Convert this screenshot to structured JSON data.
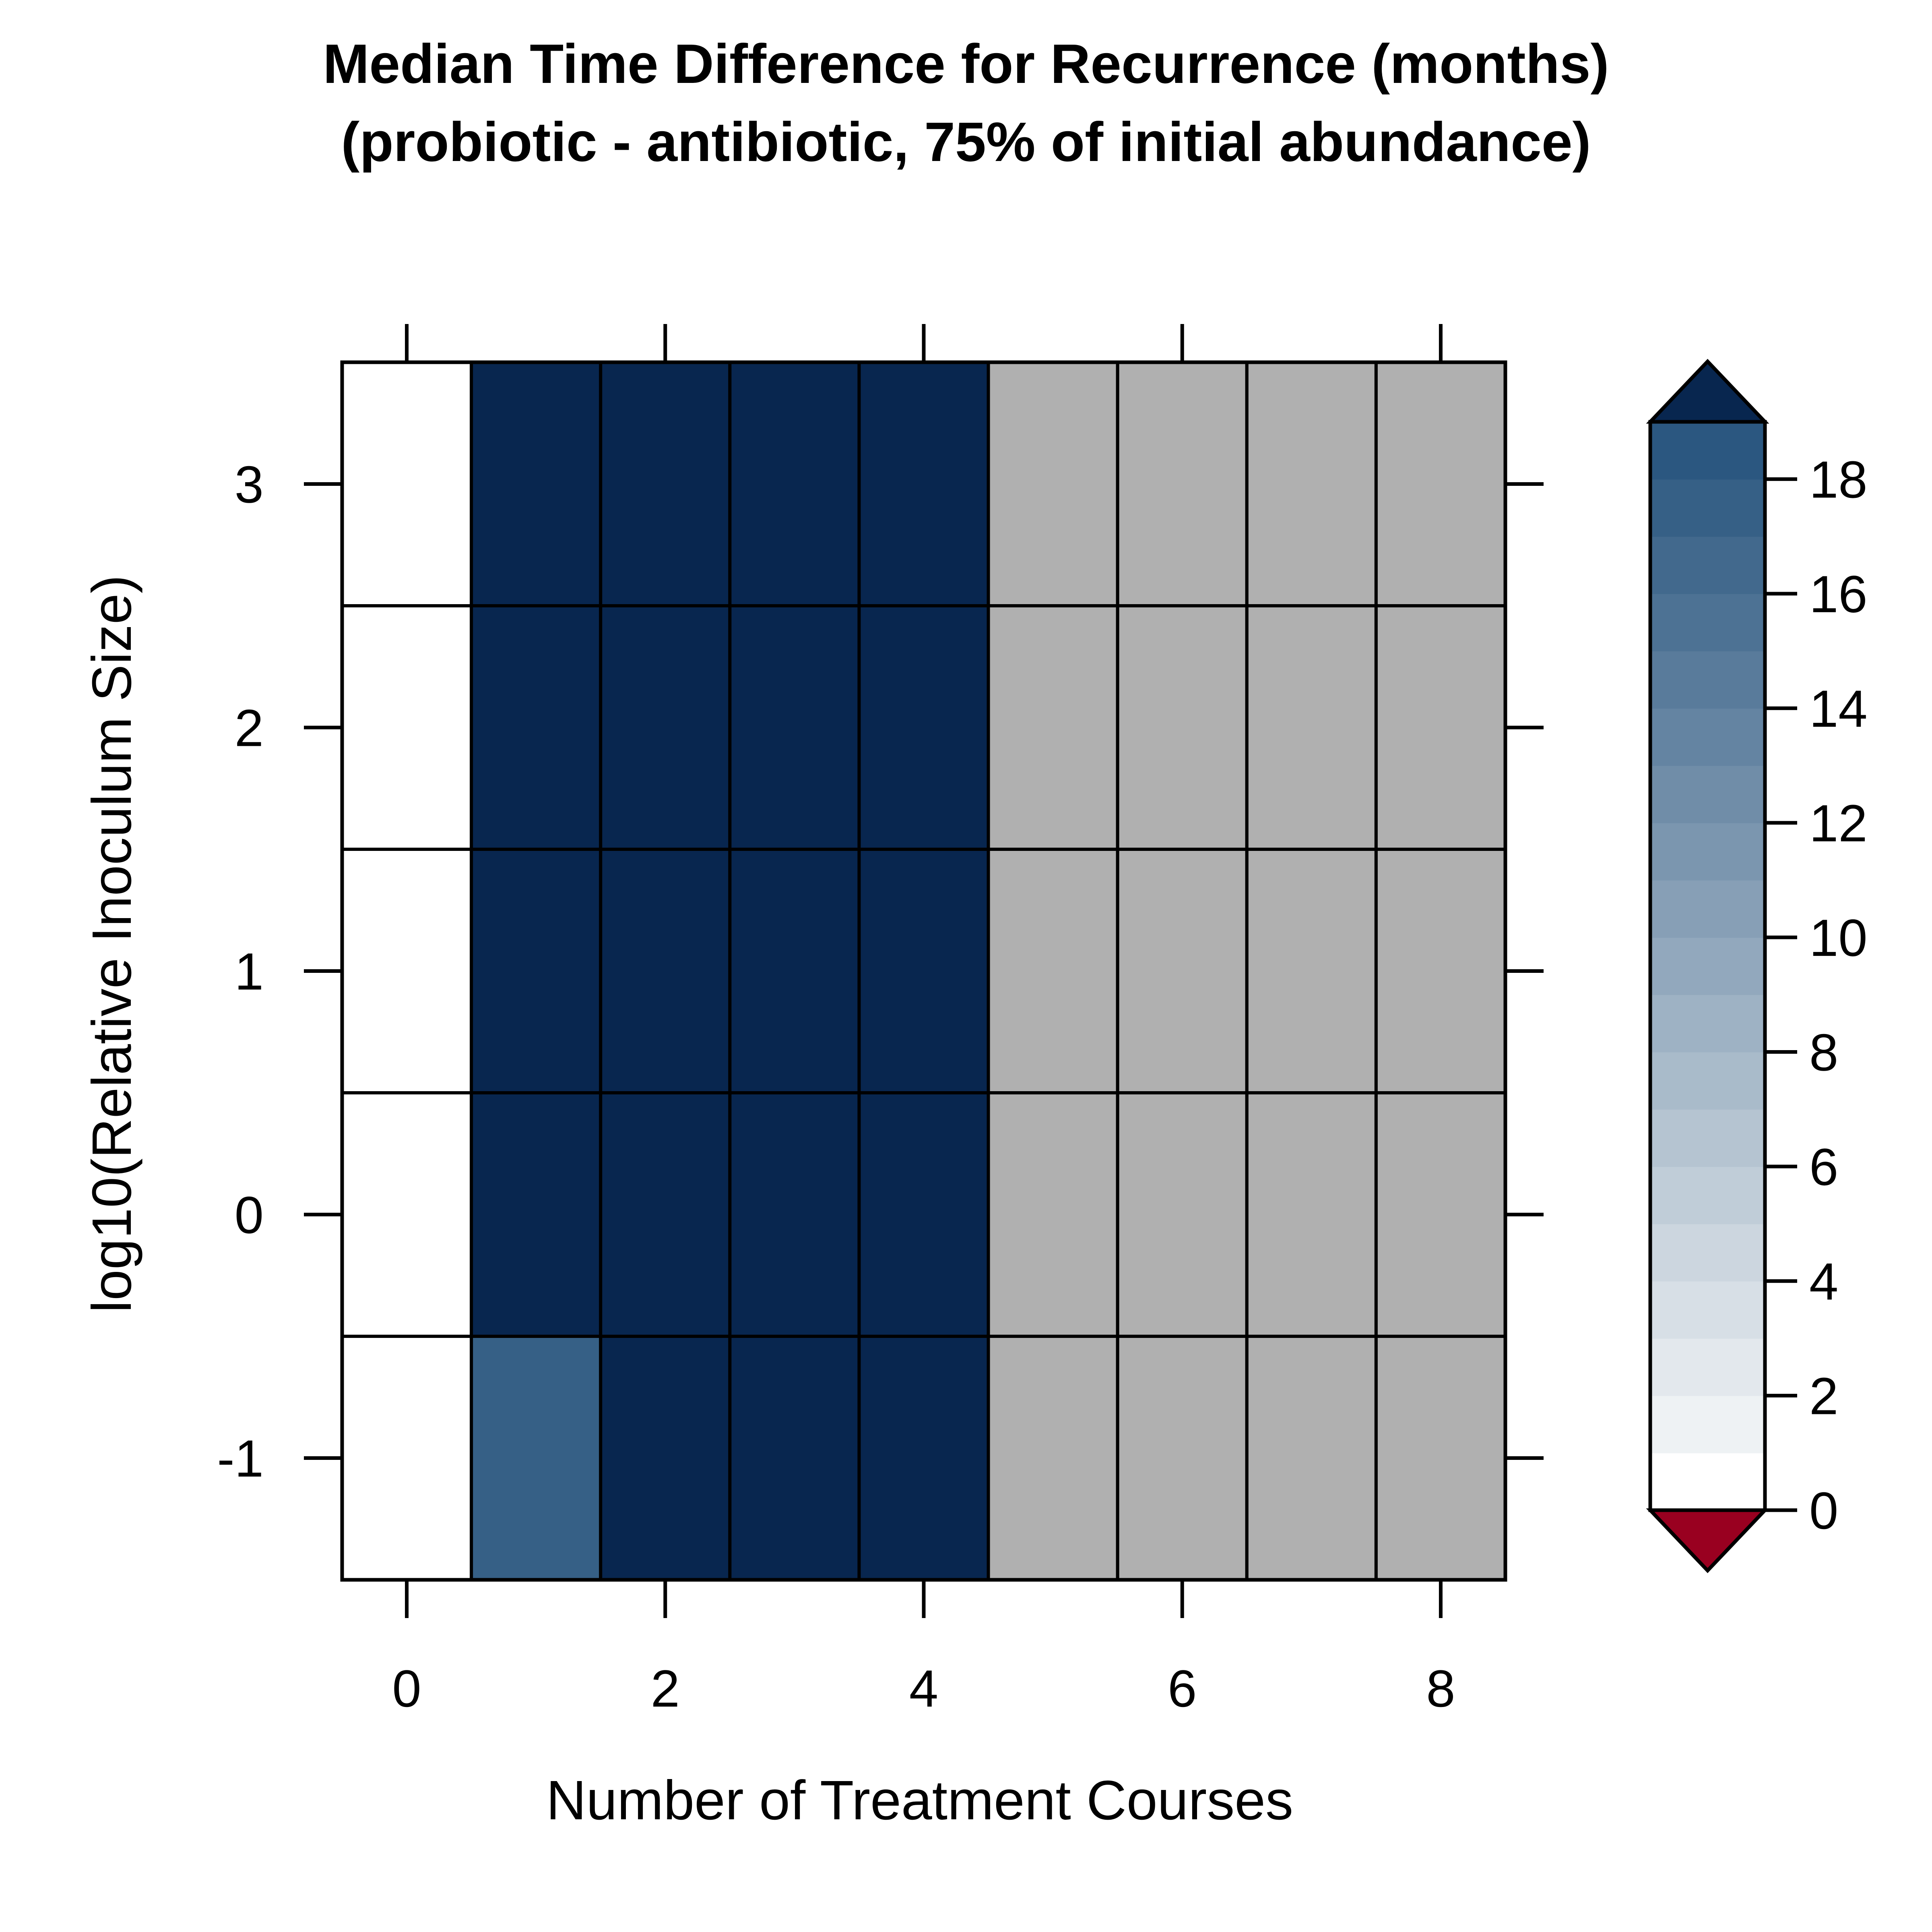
{
  "chart_data": {
    "type": "heatmap",
    "title": "Median Time Difference for Recurrence (months)",
    "subtitle": "(probiotic - antibiotic, 75% of initial abundance)",
    "xlabel": "Number of Treatment Courses",
    "ylabel": "log10(Relative Inoculum Size)",
    "x": [
      0,
      1,
      2,
      3,
      4,
      5,
      6,
      7,
      8
    ],
    "y": [
      -1,
      0,
      1,
      2,
      3
    ],
    "x_ticks": [
      "0",
      "2",
      "4",
      "6",
      "8"
    ],
    "y_ticks": [
      "-1",
      "0",
      "1",
      "2",
      "3"
    ],
    "xlim": [
      -0.5,
      8.5
    ],
    "ylim": [
      -1.5,
      3.5
    ],
    "values_rows_top_to_bottom": [
      [
        0,
        20,
        20,
        20,
        20,
        null,
        null,
        null,
        null
      ],
      [
        0,
        20,
        20,
        20,
        20,
        null,
        null,
        null,
        null
      ],
      [
        0,
        20,
        20,
        20,
        20,
        null,
        null,
        null,
        null
      ],
      [
        0,
        20,
        20,
        20,
        20,
        null,
        null,
        null,
        null
      ],
      [
        0,
        17.5,
        20,
        20,
        20,
        null,
        null,
        null,
        null
      ]
    ],
    "missing_color": "#b0b0b0",
    "colorbar": {
      "ticks": [
        "0",
        "2",
        "4",
        "6",
        "8",
        "10",
        "12",
        "14",
        "16",
        "18"
      ],
      "range": [
        0,
        19
      ],
      "levels": [
        0,
        1,
        2,
        3,
        4,
        5,
        6,
        7,
        8,
        9,
        10,
        11,
        12,
        13,
        14,
        15,
        16,
        17,
        18,
        19
      ],
      "colors": [
        "#ffffff",
        "#eef2f4",
        "#e3e8ed",
        "#d7dfe6",
        "#ccd6df",
        "#c0cdd8",
        "#b5c4d1",
        "#a9bbca",
        "#9eb2c4",
        "#92a8bd",
        "#879fb6",
        "#7b96af",
        "#708da8",
        "#6484a2",
        "#597b9b",
        "#4d7294",
        "#42698d",
        "#366086",
        "#2b5780"
      ],
      "over_color": "#08264f",
      "under_color": "#990020"
    }
  }
}
